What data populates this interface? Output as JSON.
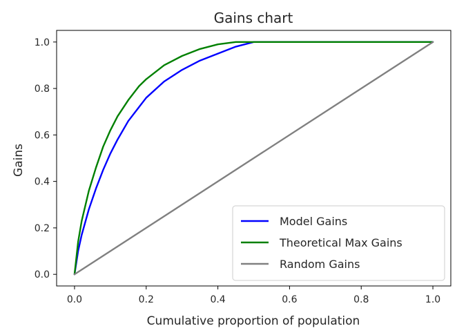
{
  "chart_data": {
    "type": "line",
    "title": "Gains chart",
    "xlabel": "Cumulative proportion of population",
    "ylabel": "Gains",
    "xlim": [
      -0.05,
      1.05
    ],
    "ylim": [
      -0.05,
      1.05
    ],
    "xticks": [
      0.0,
      0.2,
      0.4,
      0.6,
      0.8,
      1.0
    ],
    "xtick_labels": [
      "0.0",
      "0.2",
      "0.4",
      "0.6",
      "0.8",
      "1.0"
    ],
    "yticks": [
      0.0,
      0.2,
      0.4,
      0.6,
      0.8,
      1.0
    ],
    "ytick_labels": [
      "0.0",
      "0.2",
      "0.4",
      "0.6",
      "0.8",
      "1.0"
    ],
    "grid": false,
    "legend_position": "lower-right",
    "series": [
      {
        "name": "Model Gains",
        "color": "#0000ff",
        "x": [
          0,
          0.01,
          0.02,
          0.04,
          0.06,
          0.08,
          0.1,
          0.12,
          0.15,
          0.18,
          0.2,
          0.25,
          0.3,
          0.35,
          0.4,
          0.45,
          0.5,
          0.6,
          0.8,
          1.0
        ],
        "y": [
          0,
          0.1,
          0.17,
          0.28,
          0.37,
          0.45,
          0.52,
          0.58,
          0.66,
          0.72,
          0.76,
          0.83,
          0.88,
          0.92,
          0.95,
          0.98,
          1.0,
          1.0,
          1.0,
          1.0
        ]
      },
      {
        "name": "Theoretical Max Gains",
        "color": "#008000",
        "x": [
          0,
          0.01,
          0.02,
          0.04,
          0.06,
          0.08,
          0.1,
          0.12,
          0.15,
          0.18,
          0.2,
          0.25,
          0.3,
          0.35,
          0.4,
          0.45,
          0.5,
          0.6,
          0.8,
          1.0
        ],
        "y": [
          0,
          0.14,
          0.23,
          0.36,
          0.46,
          0.55,
          0.62,
          0.68,
          0.75,
          0.81,
          0.84,
          0.9,
          0.94,
          0.97,
          0.99,
          1.0,
          1.0,
          1.0,
          1.0,
          1.0
        ]
      },
      {
        "name": "Random Gains",
        "color": "#808080",
        "x": [
          0,
          1.0
        ],
        "y": [
          0,
          1.0
        ]
      }
    ]
  }
}
